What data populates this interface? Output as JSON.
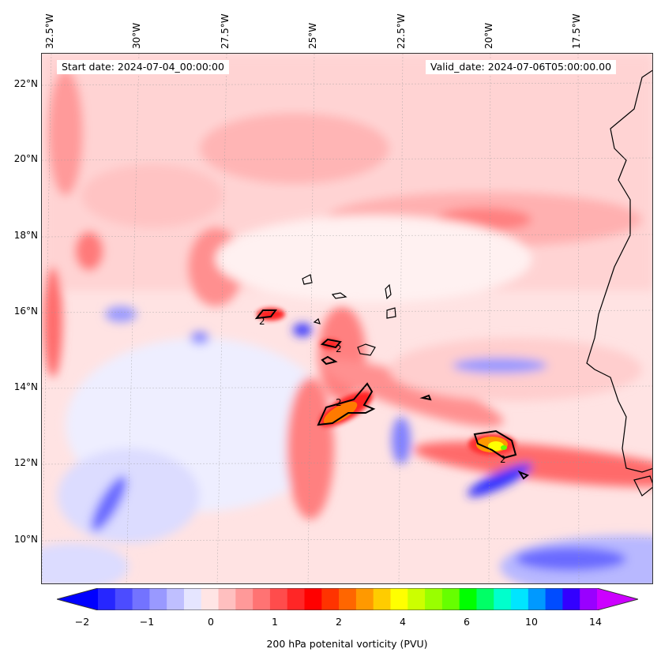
{
  "map": {
    "longitude_labels": [
      "32.5°W",
      "30°W",
      "27.5°W",
      "25°W",
      "22.5°W",
      "20°W",
      "17.5°W"
    ],
    "latitude_labels": [
      "22°N",
      "20°N",
      "18°N",
      "16°N",
      "14°N",
      "12°N",
      "10°N"
    ],
    "start_date_text": "Start date: 2024-07-04_00:00:00",
    "valid_date_text": "Valid_date: 2024-07-06T05:00:00.00",
    "contour_label": "2"
  },
  "colorbar": {
    "label": "200 hPa potenital vorticity (PVU)",
    "ticks": [
      "−2",
      "−1",
      "0",
      "1",
      "2",
      "4",
      "6",
      "10",
      "14"
    ],
    "colors": [
      "#0000ff",
      "#2626ff",
      "#4c4cff",
      "#7373ff",
      "#9999ff",
      "#bfbfff",
      "#e5e5ff",
      "#ffe5e5",
      "#ffbfbf",
      "#ff9999",
      "#ff7373",
      "#ff4c4c",
      "#ff2626",
      "#ff0000",
      "#ff3300",
      "#ff6600",
      "#ff9900",
      "#ffcc00",
      "#ffff00",
      "#ccff00",
      "#99ff00",
      "#66ff00",
      "#00ff00",
      "#00ff66",
      "#00ffcc",
      "#00e5ff",
      "#0099ff",
      "#004cff",
      "#3300ff",
      "#9900ff",
      "#cc00ff"
    ]
  }
}
